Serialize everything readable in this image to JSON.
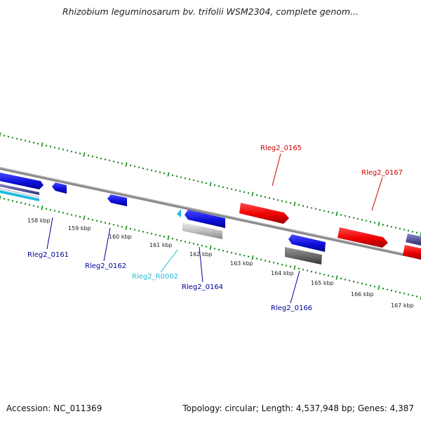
{
  "title": "Rhizobium leguminosarum bv. trifolii WSM2304, complete genom...",
  "footer": {
    "accession": "Accession: NC_011369",
    "summary": "Topology: circular; Length: 4,537,948 bp; Genes: 4,387"
  },
  "colors": {
    "forward": "#e00000",
    "reverse": "#1010dd",
    "rna": "#22bbdd",
    "pseudo_light": "#bbbbbb",
    "pseudo_dark": "#666666",
    "purple": "#555599",
    "tick": "#1a8a1a",
    "backbone": "#888888"
  },
  "ruler": {
    "labels": [
      "158 kbp",
      "159 kbp",
      "160 kbp",
      "161 kbp",
      "162 kbp",
      "163 kbp",
      "164 kbp",
      "165 kbp",
      "166 kbp",
      "167 kbp"
    ]
  },
  "gene_labels": [
    {
      "text": "Rleg2_0165",
      "color": "#cc0000"
    },
    {
      "text": "Rleg2_0167",
      "color": "#cc0000"
    },
    {
      "text": "Rleg2_0161",
      "color": "#000099"
    },
    {
      "text": "Rleg2_0162",
      "color": "#000099"
    },
    {
      "text": "Rleg2_R0002",
      "color": "#22bbdd"
    },
    {
      "text": "Rleg2_0164",
      "color": "#000099"
    },
    {
      "text": "Rleg2_0166",
      "color": "#000099"
    }
  ]
}
